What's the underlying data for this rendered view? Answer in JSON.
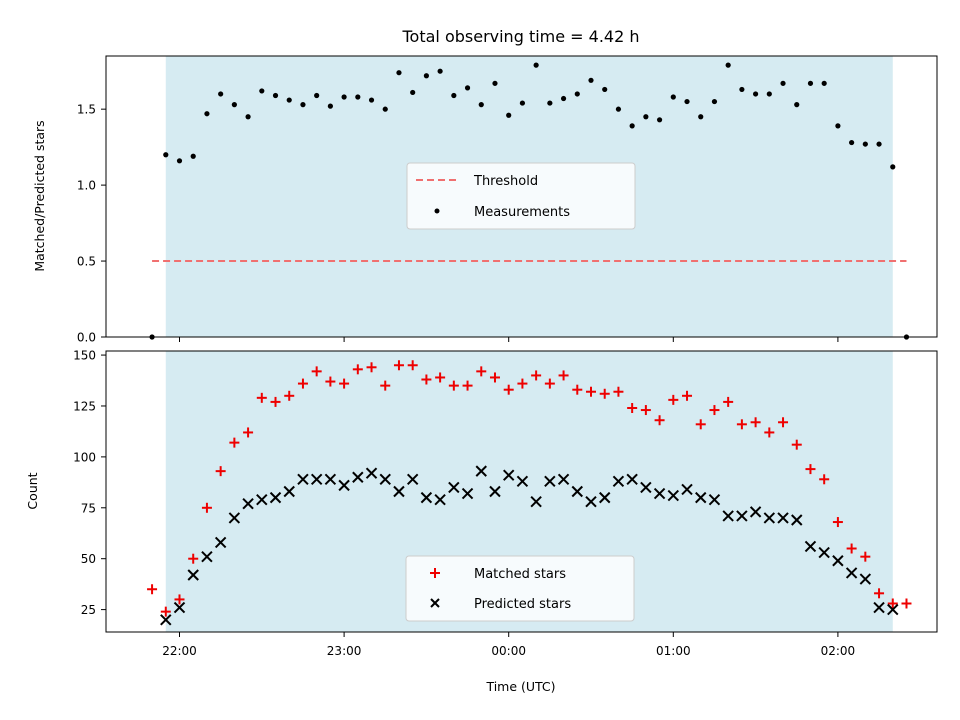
{
  "chart_data": [
    {
      "type": "scatter",
      "title": "Total observing time = 4.42 h",
      "xlabel": "",
      "ylabel": "Matched/Predicted stars",
      "ylim": [
        0,
        1.85
      ],
      "yticks": [
        "0.0",
        "0.5",
        "1.0",
        "1.5"
      ],
      "yticks_values": [
        0,
        0.5,
        1.0,
        1.5
      ],
      "grid": false,
      "legend_position": "center",
      "threshold": {
        "name": "Threshold",
        "y": 0.5,
        "x_range": [
          "21:50",
          "02:25"
        ],
        "color": "#f07070"
      },
      "observing_window": [
        "21:55",
        "02:20"
      ],
      "series": [
        {
          "name": "Measurements",
          "color": "#000000",
          "x": [
            "21:50",
            "21:55",
            "22:00",
            "22:05",
            "22:10",
            "22:15",
            "22:20",
            "22:25",
            "22:30",
            "22:35",
            "22:40",
            "22:45",
            "22:50",
            "22:55",
            "23:00",
            "23:05",
            "23:10",
            "23:15",
            "23:20",
            "23:25",
            "23:30",
            "23:35",
            "23:40",
            "23:45",
            "23:50",
            "23:55",
            "00:00",
            "00:05",
            "00:10",
            "00:15",
            "00:20",
            "00:25",
            "00:30",
            "00:35",
            "00:40",
            "00:45",
            "00:50",
            "00:55",
            "01:00",
            "01:05",
            "01:10",
            "01:15",
            "01:20",
            "01:25",
            "01:30",
            "01:35",
            "01:40",
            "01:45",
            "01:50",
            "01:55",
            "02:00",
            "02:05",
            "02:10",
            "02:15",
            "02:20",
            "02:25"
          ],
          "y": [
            0.0,
            1.2,
            1.16,
            1.19,
            1.47,
            1.6,
            1.53,
            1.45,
            1.62,
            1.59,
            1.56,
            1.53,
            1.59,
            1.52,
            1.58,
            1.58,
            1.56,
            1.5,
            1.74,
            1.61,
            1.72,
            1.75,
            1.59,
            1.64,
            1.53,
            1.67,
            1.46,
            1.54,
            1.79,
            1.54,
            1.57,
            1.6,
            1.69,
            1.63,
            1.5,
            1.39,
            1.45,
            1.43,
            1.58,
            1.55,
            1.45,
            1.55,
            1.79,
            1.63,
            1.6,
            1.6,
            1.67,
            1.53,
            1.67,
            1.67,
            1.39,
            1.28,
            1.27,
            1.27,
            1.12,
            0.0
          ]
        }
      ]
    },
    {
      "type": "scatter",
      "title": "",
      "xlabel": "Time (UTC)",
      "ylabel": "Count",
      "ylim": [
        14,
        152
      ],
      "yticks": [
        "25",
        "50",
        "75",
        "100",
        "125",
        "150"
      ],
      "yticks_values": [
        25,
        50,
        75,
        100,
        125,
        150
      ],
      "xticks": [
        "22:00",
        "23:00",
        "00:00",
        "01:00",
        "02:00"
      ],
      "grid": false,
      "legend_position": "lower center",
      "observing_window": [
        "21:55",
        "02:20"
      ],
      "series": [
        {
          "name": "Matched stars",
          "marker": "+",
          "color": "#ee0000",
          "x": [
            "21:50",
            "21:55",
            "22:00",
            "22:05",
            "22:10",
            "22:15",
            "22:20",
            "22:25",
            "22:30",
            "22:35",
            "22:40",
            "22:45",
            "22:50",
            "22:55",
            "23:00",
            "23:05",
            "23:10",
            "23:15",
            "23:20",
            "23:25",
            "23:30",
            "23:35",
            "23:40",
            "23:45",
            "23:50",
            "23:55",
            "00:00",
            "00:05",
            "00:10",
            "00:15",
            "00:20",
            "00:25",
            "00:30",
            "00:35",
            "00:40",
            "00:45",
            "00:50",
            "00:55",
            "01:00",
            "01:05",
            "01:10",
            "01:15",
            "01:20",
            "01:25",
            "01:30",
            "01:35",
            "01:40",
            "01:45",
            "01:50",
            "01:55",
            "02:00",
            "02:05",
            "02:10",
            "02:15",
            "02:20",
            "02:25"
          ],
          "y": [
            35,
            24,
            30,
            50,
            75,
            93,
            107,
            112,
            129,
            127,
            130,
            136,
            142,
            137,
            136,
            143,
            144,
            135,
            145,
            145,
            138,
            139,
            135,
            135,
            142,
            139,
            133,
            136,
            140,
            136,
            140,
            133,
            132,
            131,
            132,
            124,
            123,
            118,
            128,
            130,
            116,
            123,
            127,
            116,
            117,
            112,
            117,
            106,
            94,
            89,
            68,
            55,
            51,
            33,
            28,
            28
          ]
        },
        {
          "name": "Predicted stars",
          "marker": "x",
          "color": "#000000",
          "x": [
            "21:55",
            "22:00",
            "22:05",
            "22:10",
            "22:15",
            "22:20",
            "22:25",
            "22:30",
            "22:35",
            "22:40",
            "22:45",
            "22:50",
            "22:55",
            "23:00",
            "23:05",
            "23:10",
            "23:15",
            "23:20",
            "23:25",
            "23:30",
            "23:35",
            "23:40",
            "23:45",
            "23:50",
            "23:55",
            "00:00",
            "00:05",
            "00:10",
            "00:15",
            "00:20",
            "00:25",
            "00:30",
            "00:35",
            "00:40",
            "00:45",
            "00:50",
            "00:55",
            "01:00",
            "01:05",
            "01:10",
            "01:15",
            "01:20",
            "01:25",
            "01:30",
            "01:35",
            "01:40",
            "01:45",
            "01:50",
            "01:55",
            "02:00",
            "02:05",
            "02:10",
            "02:15",
            "02:20"
          ],
          "y": [
            20,
            26,
            42,
            51,
            58,
            70,
            77,
            79,
            80,
            83,
            89,
            89,
            89,
            86,
            90,
            92,
            89,
            83,
            89,
            80,
            79,
            85,
            82,
            93,
            83,
            91,
            88,
            78,
            88,
            89,
            83,
            78,
            80,
            88,
            89,
            85,
            82,
            81,
            84,
            80,
            79,
            71,
            71,
            73,
            70,
            70,
            69,
            56,
            53,
            49,
            43,
            40,
            26,
            25
          ]
        }
      ]
    }
  ]
}
